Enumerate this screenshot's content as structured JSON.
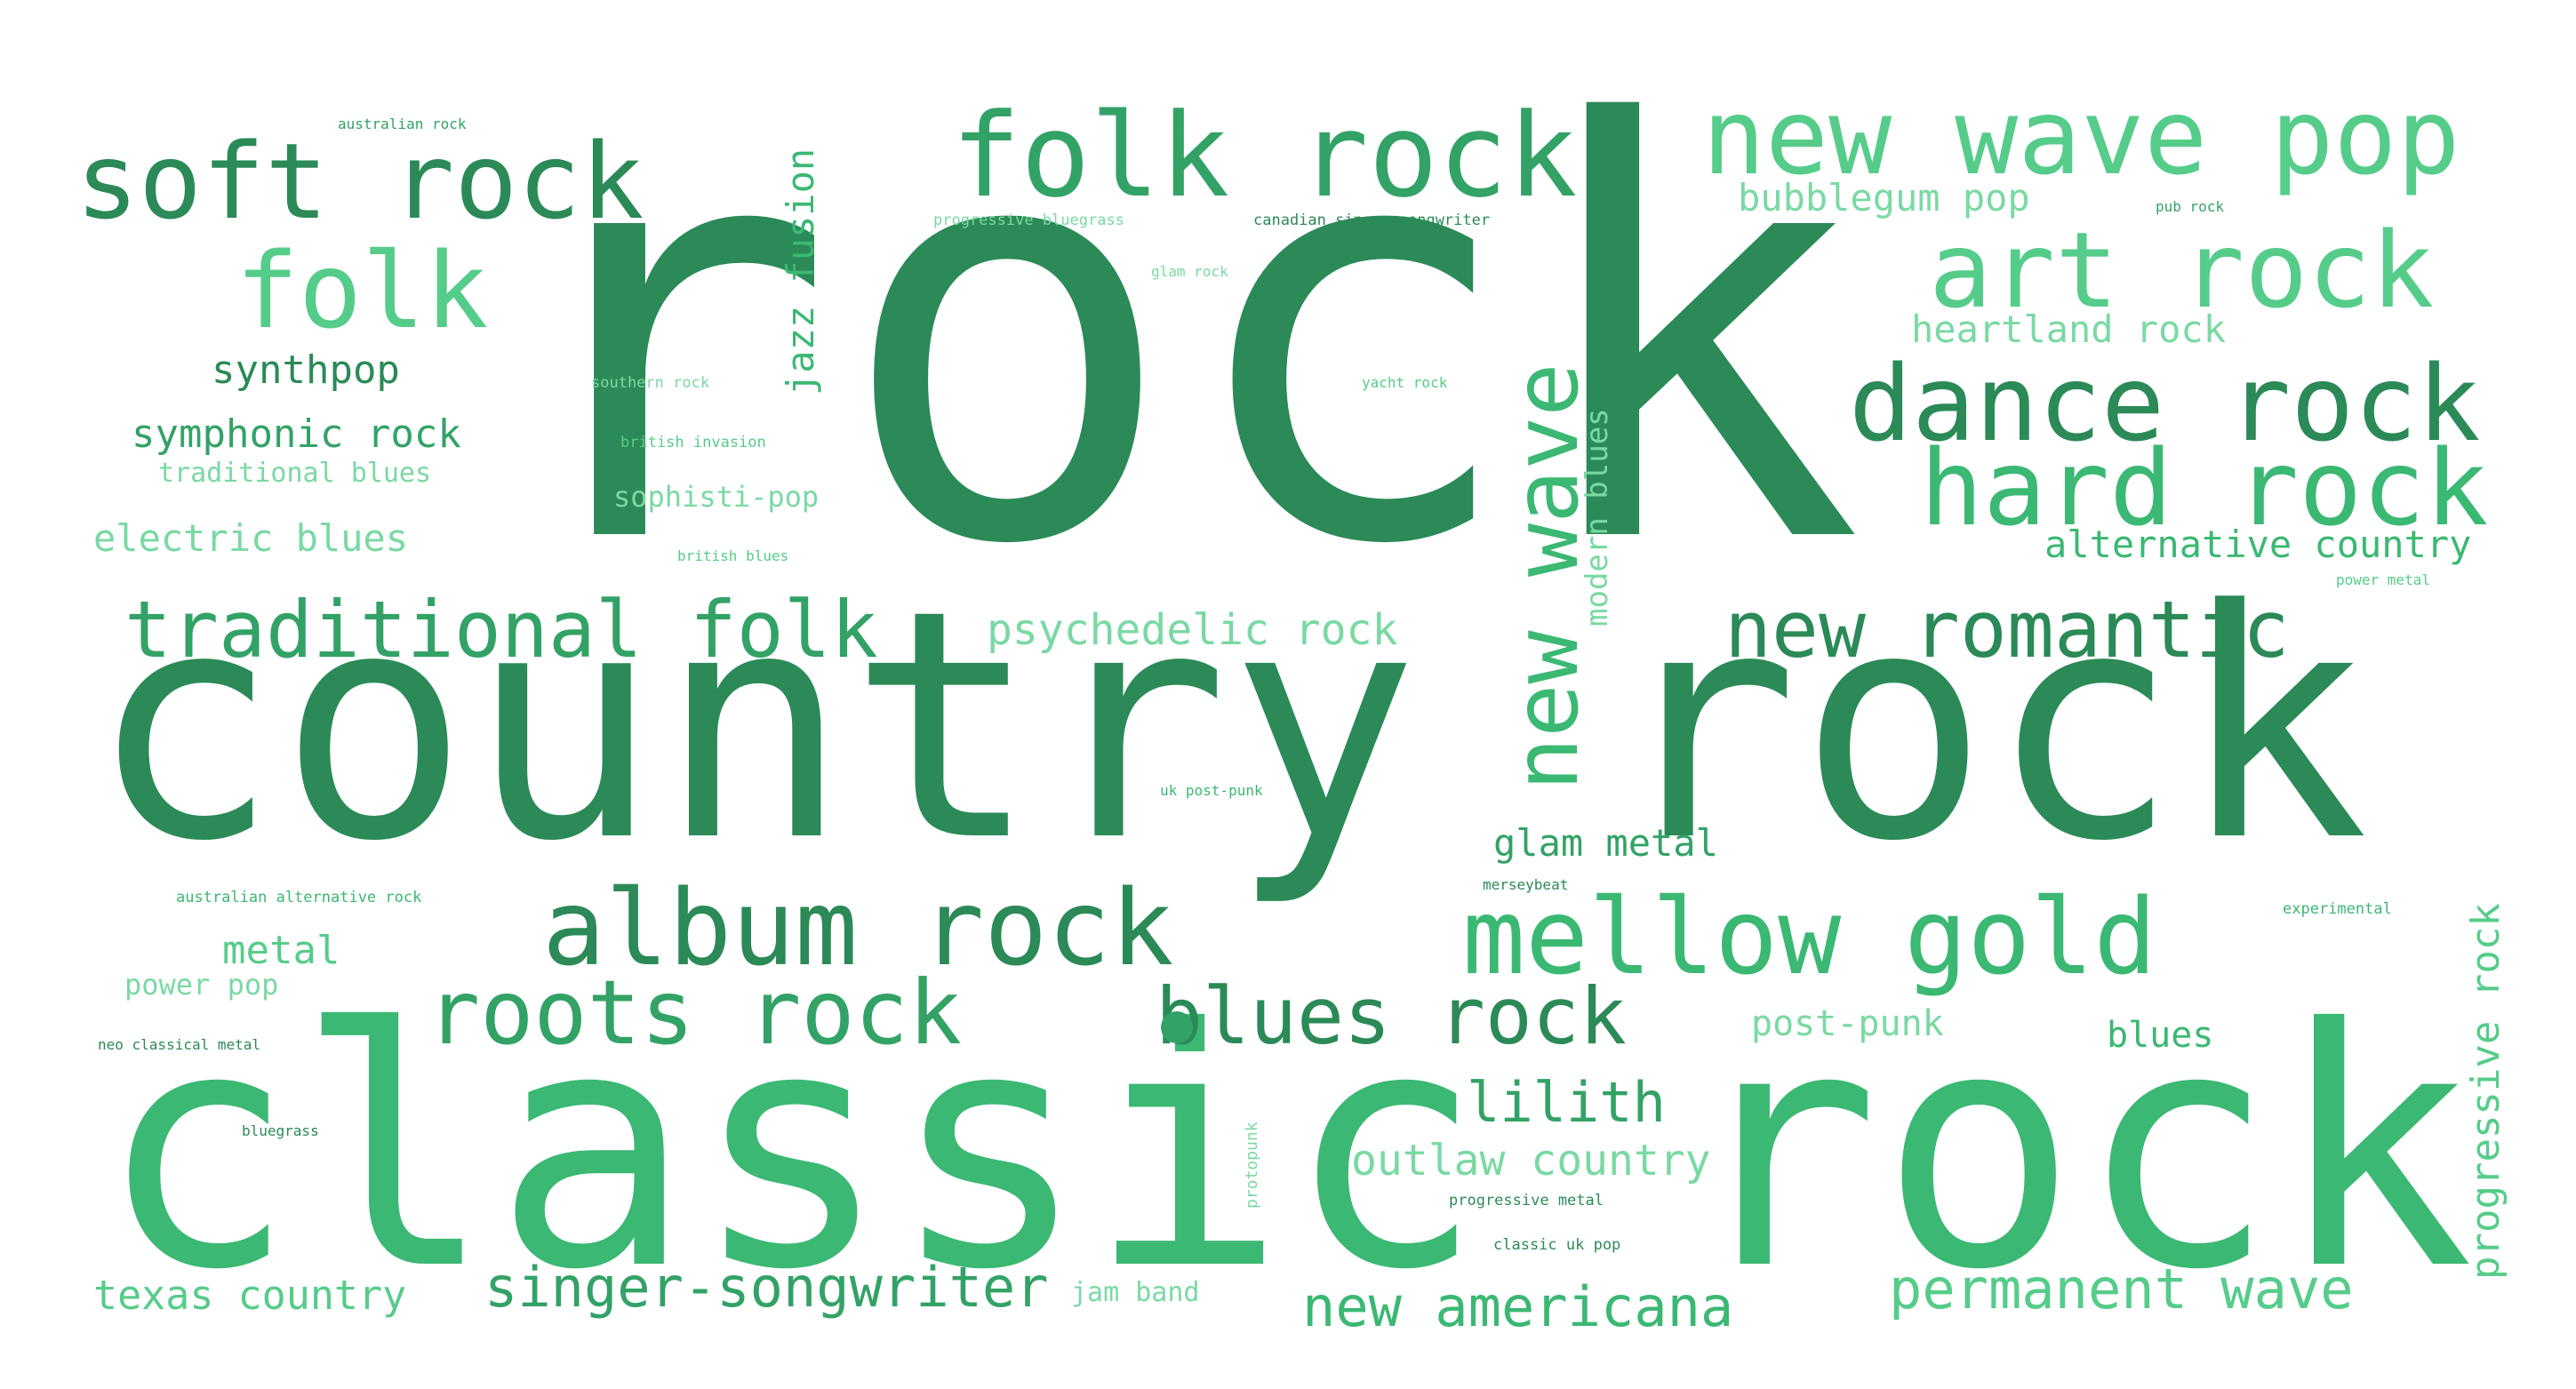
{
  "words": {
    "rock": "rock",
    "country_rock": "country rock",
    "classic_rock": "classic rock",
    "folk_rock": "folk rock",
    "soft_rock": "soft rock",
    "new_wave_pop": "new wave pop",
    "art_rock": "art rock",
    "folk": "folk",
    "dance_rock": "dance rock",
    "hard_rock": "hard rock",
    "new_wave": "new wave",
    "traditional_folk": "traditional folk",
    "new_romantic": "new romantic",
    "album_rock": "album rock",
    "mellow_gold": "mellow gold",
    "roots_rock": "roots rock",
    "blues_rock": "blues rock",
    "singer_songwriter": "singer-songwriter",
    "permanent_wave": "permanent wave",
    "new_americana": "new americana",
    "lilith": "lilith",
    "outlaw_country": "outlaw country",
    "texas_country": "texas country",
    "psychedelic_rock": "psychedelic rock",
    "jazz_fusion": "jazz fusion",
    "modern_blues": "modern blues",
    "progressive_rock": "progressive rock",
    "synthpop": "synthpop",
    "symphonic_rock": "symphonic rock",
    "traditional_blues": "traditional blues",
    "electric_blues": "electric blues",
    "bubblegum_pop": "bubblegum pop",
    "heartland_rock": "heartland rock",
    "alternative_country": "alternative country",
    "glam_metal": "glam metal",
    "metal": "metal",
    "power_pop": "power pop",
    "post_punk": "post-punk",
    "blues": "blues",
    "jam_band": "jam band",
    "sophisti_pop": "sophisti-pop",
    "australian_rock": "australian rock",
    "progressive_bluegrass": "progressive bluegrass",
    "canadian_singer_songwriter": "canadian singer-songwriter",
    "pub_rock": "pub rock",
    "glam_rock": "glam rock",
    "southern_rock": "southern rock",
    "yacht_rock": "yacht rock",
    "british_invasion": "british invasion",
    "british_blues": "british blues",
    "power_metal": "power metal",
    "uk_post_punk": "uk post-punk",
    "merseybeat": "merseybeat",
    "australian_alternative_rock": "australian alternative rock",
    "experimental": "experimental",
    "neo_classical_metal": "neo classical metal",
    "bluegrass": "bluegrass",
    "protopunk": "protopunk",
    "progressive_metal": "progressive metal",
    "classic_uk_pop": "classic uk pop"
  },
  "colors": {
    "shade_1": "#2b8a57",
    "shade_2": "#33a266",
    "shade_3": "#3bb873",
    "shade_4": "#56cc8a",
    "shade_5": "#7ad9a3",
    "background": "#ffffff"
  }
}
